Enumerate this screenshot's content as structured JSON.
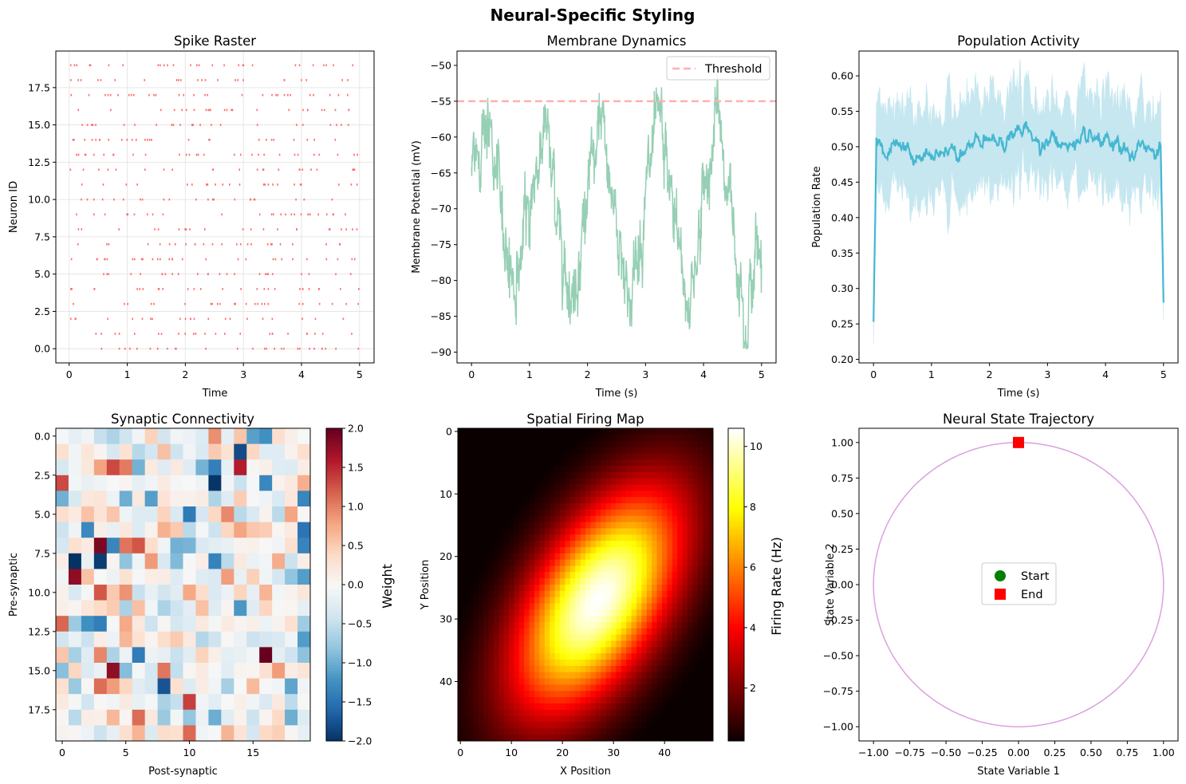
{
  "suptitle": "Neural-Specific Styling",
  "colors": {
    "raster": "#ff6b6b",
    "membrane": "#96cfb4",
    "threshold": "#ffb0b0",
    "population": "#45b7d1",
    "population_band": "#c6e7f0",
    "trajectory": "#dda0dd",
    "start": "#008000",
    "end": "#ff0000"
  },
  "chart_data": [
    {
      "id": "raster",
      "type": "scatter",
      "title": "Spike Raster",
      "xlabel": "Time",
      "ylabel": "Neuron ID",
      "xlim": [
        -0.23,
        5.25
      ],
      "ylim": [
        -0.95,
        19.95
      ],
      "xticks": [
        0,
        1,
        2,
        3,
        4,
        5
      ],
      "xtick_labels": [
        "0",
        "1",
        "2",
        "3",
        "4",
        "5"
      ],
      "yticks": [
        0,
        2.5,
        5,
        7.5,
        10,
        12.5,
        15,
        17.5
      ],
      "ytick_labels": [
        "0.0",
        "2.5",
        "5.0",
        "7.5",
        "10.0",
        "12.5",
        "15.0",
        "17.5"
      ],
      "grid": true,
      "neurons": 20,
      "time_range": [
        0,
        5
      ],
      "spikes_per_neuron_approx": 25
    },
    {
      "id": "membrane",
      "type": "line",
      "title": "Membrane Dynamics",
      "xlabel": "Time (s)",
      "ylabel": "Membrane Potential (mV)",
      "xlim": [
        -0.25,
        5.25
      ],
      "ylim": [
        -91.5,
        -48.0
      ],
      "xticks": [
        0,
        1,
        2,
        3,
        4,
        5
      ],
      "xtick_labels": [
        "0",
        "1",
        "2",
        "3",
        "4",
        "5"
      ],
      "yticks": [
        -90,
        -85,
        -80,
        -75,
        -70,
        -65,
        -60,
        -55,
        -50
      ],
      "ytick_labels": [
        "−90",
        "−85",
        "−80",
        "−75",
        "−70",
        "−65",
        "−60",
        "−55",
        "−50"
      ],
      "threshold": -55,
      "legend": [
        "Threshold"
      ],
      "legend_position": "upper-right",
      "series_envelope": {
        "x": [
          0,
          0.25,
          0.5,
          0.75,
          1.0,
          1.25,
          1.5,
          1.75,
          2.0,
          2.25,
          2.5,
          2.75,
          3.0,
          3.25,
          3.5,
          3.75,
          4.0,
          4.25,
          4.5,
          4.75,
          5.0
        ],
        "y": [
          -65,
          -57,
          -70,
          -81,
          -70,
          -58,
          -72,
          -82,
          -68,
          -59,
          -72,
          -83,
          -68,
          -59,
          -72,
          -84,
          -68,
          -57,
          -72,
          -84,
          -73
        ]
      }
    },
    {
      "id": "population",
      "type": "line",
      "title": "Population Activity",
      "xlabel": "Time (s)",
      "ylabel": "Population Rate",
      "xlim": [
        -0.25,
        5.25
      ],
      "ylim": [
        0.195,
        0.635
      ],
      "xticks": [
        0,
        1,
        2,
        3,
        4,
        5
      ],
      "xtick_labels": [
        "0",
        "1",
        "2",
        "3",
        "4",
        "5"
      ],
      "yticks": [
        0.2,
        0.25,
        0.3,
        0.35,
        0.4,
        0.45,
        0.5,
        0.55,
        0.6
      ],
      "ytick_labels": [
        "0.20",
        "0.25",
        "0.30",
        "0.35",
        "0.40",
        "0.45",
        "0.50",
        "0.55",
        "0.60"
      ],
      "mean": {
        "x": [
          0,
          0.05,
          0.5,
          1.0,
          1.5,
          2.0,
          2.5,
          3.0,
          3.5,
          4.0,
          4.5,
          4.95,
          5.0
        ],
        "y": [
          0.253,
          0.5,
          0.49,
          0.48,
          0.505,
          0.5,
          0.52,
          0.51,
          0.5,
          0.495,
          0.49,
          0.505,
          0.28
        ]
      },
      "band_halfwidth": 0.06
    },
    {
      "id": "connectivity",
      "type": "heatmap",
      "title": "Synaptic Connectivity",
      "xlabel": "Post-synaptic",
      "ylabel": "Pre-synaptic",
      "size": 20,
      "xticks": [
        0,
        5,
        10,
        15
      ],
      "xtick_labels": [
        "0",
        "5",
        "10",
        "15"
      ],
      "yticks": [
        0,
        2.5,
        5,
        7.5,
        10,
        12.5,
        15,
        17.5
      ],
      "ytick_labels": [
        "0.0",
        "2.5",
        "5.0",
        "7.5",
        "10.0",
        "12.5",
        "15.0",
        "17.5"
      ],
      "colormap": "RdBu_r",
      "vmin": -2,
      "vmax": 2,
      "colorbar_label": "Weight",
      "colorbar_ticks": [
        2.0,
        1.5,
        1.0,
        0.5,
        0.0,
        -0.5,
        -1.0,
        -1.5,
        -2.0
      ],
      "colorbar_tick_labels": [
        "2.0",
        "1.5",
        "1.0",
        "0.5",
        "0.0",
        "−0.5",
        "−1.0",
        "−1.5",
        "−2.0"
      ]
    },
    {
      "id": "spatial",
      "type": "heatmap",
      "title": "Spatial Firing Map",
      "xlabel": "X Position",
      "ylabel": "Y Position",
      "size": 50,
      "xticks": [
        0,
        10,
        20,
        30,
        40
      ],
      "xtick_labels": [
        "0",
        "10",
        "20",
        "30",
        "40"
      ],
      "yticks": [
        0,
        10,
        20,
        30,
        40
      ],
      "ytick_labels": [
        "0",
        "10",
        "20",
        "30",
        "40"
      ],
      "colormap": "hot",
      "peak_rate": 10.6,
      "peak_center": [
        27,
        27
      ],
      "colorbar_label": "Firing Rate (Hz)",
      "colorbar_ticks": [
        10,
        8,
        6,
        4,
        2
      ],
      "colorbar_tick_labels": [
        "10",
        "8",
        "6",
        "4",
        "2"
      ]
    },
    {
      "id": "trajectory",
      "type": "line",
      "title": "Neural State Trajectory",
      "xlabel": "State Variable 1",
      "ylabel": "State Variable 2",
      "xlim": [
        -1.1,
        1.1
      ],
      "ylim": [
        -1.1,
        1.1
      ],
      "xticks": [
        -1.0,
        -0.75,
        -0.5,
        -0.25,
        0.0,
        0.25,
        0.5,
        0.75,
        1.0
      ],
      "xtick_labels": [
        "−1.00",
        "−0.75",
        "−0.50",
        "−0.25",
        "0.00",
        "0.25",
        "0.50",
        "0.75",
        "1.00"
      ],
      "yticks": [
        1.0,
        0.75,
        0.5,
        0.25,
        0.0,
        -0.25,
        -0.5,
        -0.75,
        -1.0
      ],
      "ytick_labels": [
        "1.00",
        "0.75",
        "0.50",
        "0.25",
        "0.00",
        "−0.25",
        "−0.50",
        "−0.75",
        "−1.00"
      ],
      "start": [
        0,
        1
      ],
      "end": [
        0,
        1
      ],
      "legend": [
        "Start",
        "End"
      ],
      "legend_position": "center"
    }
  ]
}
